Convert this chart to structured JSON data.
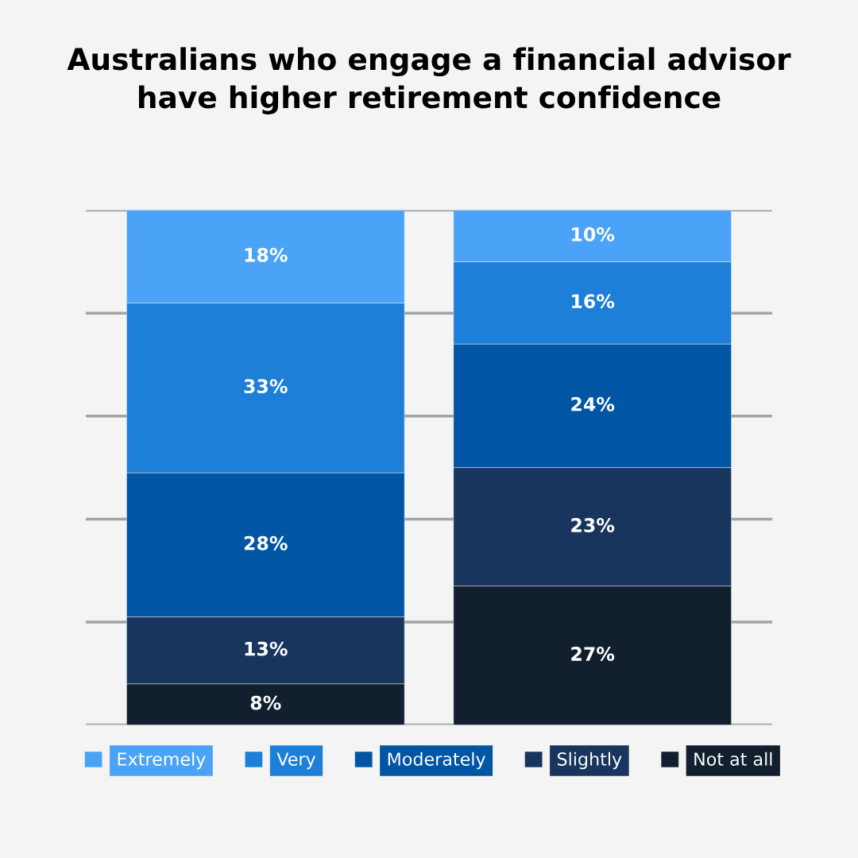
{
  "chart_data": {
    "type": "bar",
    "title": "Australians who engage a financial advisor\nhave higher retirement confidence",
    "categories": [
      null,
      null
    ],
    "stacked": true,
    "grid": "y",
    "legend": "bottom",
    "series": [
      {
        "name": "Not at all",
        "color": "#121f2f",
        "values": [
          8,
          27
        ],
        "value_labels": [
          "8%",
          "27%"
        ]
      },
      {
        "name": "Slightly",
        "color": "#18355e",
        "values": [
          13,
          23
        ],
        "value_labels": [
          "13%",
          "23%"
        ]
      },
      {
        "name": "Moderately",
        "color": "#0055a4",
        "values": [
          28,
          24
        ],
        "value_labels": [
          "28%",
          "24%"
        ]
      },
      {
        "name": "Very",
        "color": "#1e7fd8",
        "values": [
          33,
          16
        ],
        "value_labels": [
          "33%",
          "16%"
        ]
      },
      {
        "name": "Extremely",
        "color": "#4aa3f7",
        "values": [
          18,
          10
        ],
        "value_labels": [
          "18%",
          "10%"
        ]
      }
    ]
  }
}
